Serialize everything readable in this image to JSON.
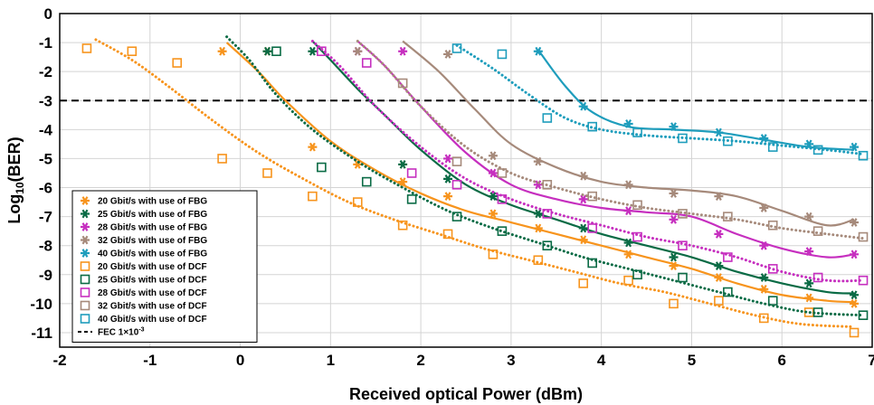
{
  "chart_data": {
    "type": "scatter",
    "title": "",
    "xlabel": "Received optical Power (dBm)",
    "ylabel_main": "Log",
    "ylabel_sub": "10",
    "ylabel_tail": "(BER)",
    "xlim": [
      -2,
      7
    ],
    "ylim": [
      -11.5,
      0
    ],
    "xticks": [
      "-2",
      "-1",
      "0",
      "1",
      "2",
      "3",
      "4",
      "5",
      "6",
      "7"
    ],
    "yticks": [
      "0",
      "-1",
      "-2",
      "-3",
      "-4",
      "-5",
      "-6",
      "-7",
      "-8",
      "-9",
      "-10",
      "-11"
    ],
    "grid": true,
    "legend_position": "bottom-left",
    "fec": {
      "label_main": "FEC 1×10",
      "label_sup": "-3",
      "y": -3
    },
    "series": [
      {
        "name": "20 Gbit/s with use of FBG",
        "color": "#f7941d",
        "marker": "star",
        "line": "solid",
        "points": [
          [
            -0.2,
            -1.3
          ],
          [
            0.3,
            -1.3
          ],
          [
            0.8,
            -4.6
          ],
          [
            1.3,
            -5.2
          ],
          [
            1.8,
            -5.8
          ],
          [
            2.3,
            -6.3
          ],
          [
            2.8,
            -6.9
          ],
          [
            3.3,
            -7.4
          ],
          [
            3.8,
            -7.8
          ],
          [
            4.3,
            -8.3
          ],
          [
            4.8,
            -8.7
          ],
          [
            5.3,
            -9.1
          ],
          [
            5.8,
            -9.5
          ],
          [
            6.3,
            -9.8
          ],
          [
            6.8,
            -10.0
          ]
        ],
        "fit": [
          [
            -0.15,
            -1.0
          ],
          [
            0.2,
            -2.0
          ],
          [
            0.5,
            -3.0
          ],
          [
            1.0,
            -4.4
          ],
          [
            1.5,
            -5.4
          ],
          [
            2.0,
            -6.2
          ],
          [
            2.5,
            -6.8
          ],
          [
            3.0,
            -7.2
          ],
          [
            3.5,
            -7.6
          ],
          [
            4.0,
            -8.0
          ],
          [
            4.5,
            -8.4
          ],
          [
            5.0,
            -8.8
          ],
          [
            5.5,
            -9.3
          ],
          [
            6.0,
            -9.7
          ],
          [
            6.5,
            -9.9
          ],
          [
            6.8,
            -9.95
          ]
        ]
      },
      {
        "name": "25 Gbit/s with use of FBG",
        "color": "#0a6b45",
        "marker": "star",
        "line": "solid",
        "points": [
          [
            0.3,
            -1.3
          ],
          [
            0.8,
            -1.3
          ],
          [
            1.8,
            -5.2
          ],
          [
            2.3,
            -5.7
          ],
          [
            2.8,
            -6.3
          ],
          [
            3.3,
            -6.9
          ],
          [
            3.8,
            -7.4
          ],
          [
            4.3,
            -7.9
          ],
          [
            4.8,
            -8.4
          ],
          [
            5.3,
            -8.7
          ],
          [
            5.8,
            -9.1
          ],
          [
            6.3,
            -9.3
          ],
          [
            6.8,
            -9.7
          ]
        ],
        "fit": [
          [
            0.8,
            -0.95
          ],
          [
            1.0,
            -1.6
          ],
          [
            1.3,
            -2.6
          ],
          [
            1.6,
            -3.5
          ],
          [
            2.0,
            -4.7
          ],
          [
            2.5,
            -5.9
          ],
          [
            3.0,
            -6.6
          ],
          [
            3.5,
            -7.1
          ],
          [
            4.0,
            -7.6
          ],
          [
            4.5,
            -8.0
          ],
          [
            5.0,
            -8.4
          ],
          [
            5.5,
            -8.9
          ],
          [
            6.0,
            -9.3
          ],
          [
            6.5,
            -9.6
          ],
          [
            6.8,
            -9.65
          ]
        ]
      },
      {
        "name": "28 Gbit/s with use of FBG",
        "color": "#c62fbf",
        "marker": "star",
        "line": "solid",
        "points": [
          [
            1.3,
            -1.3
          ],
          [
            1.8,
            -1.3
          ],
          [
            2.3,
            -5.0
          ],
          [
            2.8,
            -5.5
          ],
          [
            3.3,
            -5.9
          ],
          [
            3.8,
            -6.4
          ],
          [
            4.3,
            -6.8
          ],
          [
            4.8,
            -7.1
          ],
          [
            5.3,
            -7.6
          ],
          [
            5.8,
            -8.0
          ],
          [
            6.3,
            -8.2
          ],
          [
            6.8,
            -8.3
          ]
        ],
        "fit": [
          [
            1.3,
            -0.95
          ],
          [
            1.6,
            -1.8
          ],
          [
            2.0,
            -3.2
          ],
          [
            2.5,
            -4.8
          ],
          [
            3.0,
            -5.9
          ],
          [
            3.5,
            -6.4
          ],
          [
            4.0,
            -6.7
          ],
          [
            4.5,
            -6.85
          ],
          [
            5.0,
            -7.0
          ],
          [
            5.5,
            -7.6
          ],
          [
            6.0,
            -8.1
          ],
          [
            6.5,
            -8.4
          ],
          [
            6.8,
            -8.3
          ]
        ]
      },
      {
        "name": "32 Gbit/s with use of FBG",
        "color": "#a68a7b",
        "marker": "star",
        "line": "solid",
        "points": [
          [
            1.3,
            -1.3
          ],
          [
            2.3,
            -1.4
          ],
          [
            2.8,
            -4.9
          ],
          [
            3.3,
            -5.1
          ],
          [
            3.8,
            -5.6
          ],
          [
            4.3,
            -5.9
          ],
          [
            4.8,
            -6.2
          ],
          [
            5.3,
            -6.3
          ],
          [
            5.8,
            -6.7
          ],
          [
            6.3,
            -7.0
          ],
          [
            6.8,
            -7.2
          ]
        ],
        "fit": [
          [
            1.8,
            -0.95
          ],
          [
            2.2,
            -2.0
          ],
          [
            2.6,
            -3.3
          ],
          [
            3.0,
            -4.5
          ],
          [
            3.5,
            -5.3
          ],
          [
            4.0,
            -5.8
          ],
          [
            4.5,
            -6.0
          ],
          [
            5.0,
            -6.1
          ],
          [
            5.5,
            -6.3
          ],
          [
            6.0,
            -6.8
          ],
          [
            6.5,
            -7.3
          ],
          [
            6.8,
            -7.1
          ]
        ]
      },
      {
        "name": "40 Gbit/s with use of FBG",
        "color": "#1e9dbc",
        "marker": "star",
        "line": "solid",
        "points": [
          [
            3.3,
            -1.3
          ],
          [
            3.8,
            -3.2
          ],
          [
            4.3,
            -3.8
          ],
          [
            4.8,
            -3.9
          ],
          [
            5.3,
            -4.1
          ],
          [
            5.8,
            -4.3
          ],
          [
            6.3,
            -4.5
          ],
          [
            6.8,
            -4.6
          ]
        ],
        "fit": [
          [
            3.3,
            -1.25
          ],
          [
            3.6,
            -2.5
          ],
          [
            3.9,
            -3.4
          ],
          [
            4.3,
            -3.9
          ],
          [
            4.8,
            -4.0
          ],
          [
            5.3,
            -4.1
          ],
          [
            5.8,
            -4.35
          ],
          [
            6.3,
            -4.6
          ],
          [
            6.8,
            -4.7
          ]
        ]
      },
      {
        "name": "20 Gbit/s with use of DCF",
        "color": "#f7941d",
        "marker": "square",
        "line": "dotted",
        "points": [
          [
            -1.7,
            -1.2
          ],
          [
            -1.2,
            -1.3
          ],
          [
            -0.7,
            -1.7
          ],
          [
            -0.2,
            -5.0
          ],
          [
            0.3,
            -5.5
          ],
          [
            0.8,
            -6.3
          ],
          [
            1.3,
            -6.5
          ],
          [
            1.8,
            -7.3
          ],
          [
            2.3,
            -7.6
          ],
          [
            2.8,
            -8.3
          ],
          [
            3.3,
            -8.5
          ],
          [
            3.8,
            -9.3
          ],
          [
            4.3,
            -9.2
          ],
          [
            4.8,
            -10.0
          ],
          [
            5.3,
            -9.9
          ],
          [
            5.8,
            -10.5
          ],
          [
            6.3,
            -10.3
          ],
          [
            6.8,
            -11.0
          ]
        ],
        "fit": [
          [
            -1.6,
            -0.9
          ],
          [
            -1.2,
            -1.6
          ],
          [
            -0.8,
            -2.5
          ],
          [
            -0.3,
            -3.7
          ],
          [
            0.2,
            -4.8
          ],
          [
            0.7,
            -5.7
          ],
          [
            1.2,
            -6.5
          ],
          [
            1.7,
            -7.1
          ],
          [
            2.2,
            -7.6
          ],
          [
            2.7,
            -8.1
          ],
          [
            3.2,
            -8.5
          ],
          [
            3.7,
            -8.9
          ],
          [
            4.2,
            -9.3
          ],
          [
            4.7,
            -9.6
          ],
          [
            5.2,
            -10.0
          ],
          [
            5.7,
            -10.4
          ],
          [
            6.2,
            -10.7
          ],
          [
            6.8,
            -10.8
          ]
        ]
      },
      {
        "name": "25 Gbit/s with use of DCF",
        "color": "#0a6b45",
        "marker": "square",
        "line": "dotted",
        "points": [
          [
            0.4,
            -1.3
          ],
          [
            0.9,
            -5.3
          ],
          [
            1.4,
            -5.8
          ],
          [
            1.9,
            -6.4
          ],
          [
            2.4,
            -7.0
          ],
          [
            2.9,
            -7.5
          ],
          [
            3.4,
            -8.0
          ],
          [
            3.9,
            -8.6
          ],
          [
            4.4,
            -9.0
          ],
          [
            4.9,
            -9.1
          ],
          [
            5.4,
            -9.6
          ],
          [
            5.9,
            -9.9
          ],
          [
            6.4,
            -10.3
          ],
          [
            6.9,
            -10.4
          ]
        ],
        "fit": [
          [
            -0.15,
            -0.8
          ],
          [
            0.1,
            -1.6
          ],
          [
            0.4,
            -2.8
          ],
          [
            0.8,
            -4.0
          ],
          [
            1.3,
            -5.1
          ],
          [
            1.8,
            -6.0
          ],
          [
            2.3,
            -6.8
          ],
          [
            2.8,
            -7.4
          ],
          [
            3.3,
            -7.9
          ],
          [
            3.8,
            -8.4
          ],
          [
            4.3,
            -8.8
          ],
          [
            4.8,
            -9.2
          ],
          [
            5.3,
            -9.6
          ],
          [
            5.8,
            -10.0
          ],
          [
            6.3,
            -10.3
          ],
          [
            6.9,
            -10.4
          ]
        ]
      },
      {
        "name": "28 Gbit/s with use of DCF",
        "color": "#c62fbf",
        "marker": "square",
        "line": "dotted",
        "points": [
          [
            0.9,
            -1.3
          ],
          [
            1.4,
            -1.7
          ],
          [
            1.9,
            -5.5
          ],
          [
            2.4,
            -5.9
          ],
          [
            2.9,
            -6.4
          ],
          [
            3.4,
            -6.9
          ],
          [
            3.9,
            -7.4
          ],
          [
            4.4,
            -7.7
          ],
          [
            4.9,
            -8.0
          ],
          [
            5.4,
            -8.4
          ],
          [
            5.9,
            -8.8
          ],
          [
            6.4,
            -9.1
          ],
          [
            6.9,
            -9.2
          ]
        ],
        "fit": [
          [
            0.8,
            -0.95
          ],
          [
            1.1,
            -1.8
          ],
          [
            1.5,
            -3.2
          ],
          [
            2.0,
            -4.6
          ],
          [
            2.5,
            -5.7
          ],
          [
            3.0,
            -6.4
          ],
          [
            3.5,
            -6.9
          ],
          [
            4.0,
            -7.3
          ],
          [
            4.5,
            -7.7
          ],
          [
            5.0,
            -8.0
          ],
          [
            5.5,
            -8.4
          ],
          [
            6.0,
            -8.9
          ],
          [
            6.5,
            -9.2
          ],
          [
            6.9,
            -9.2
          ]
        ]
      },
      {
        "name": "32 Gbit/s with use of DCF",
        "color": "#a68a7b",
        "marker": "square",
        "line": "dotted",
        "points": [
          [
            1.8,
            -2.4
          ],
          [
            2.4,
            -5.1
          ],
          [
            2.9,
            -5.5
          ],
          [
            3.4,
            -5.9
          ],
          [
            3.9,
            -6.3
          ],
          [
            4.4,
            -6.6
          ],
          [
            4.9,
            -6.9
          ],
          [
            5.4,
            -7.0
          ],
          [
            5.9,
            -7.3
          ],
          [
            6.4,
            -7.5
          ],
          [
            6.9,
            -7.7
          ]
        ],
        "fit": [
          [
            1.3,
            -0.95
          ],
          [
            1.6,
            -1.8
          ],
          [
            2.0,
            -3.2
          ],
          [
            2.5,
            -4.6
          ],
          [
            3.0,
            -5.5
          ],
          [
            3.5,
            -6.0
          ],
          [
            4.0,
            -6.4
          ],
          [
            4.5,
            -6.7
          ],
          [
            5.0,
            -6.9
          ],
          [
            5.5,
            -7.1
          ],
          [
            6.0,
            -7.4
          ],
          [
            6.5,
            -7.6
          ],
          [
            6.9,
            -7.75
          ]
        ]
      },
      {
        "name": "40 Gbit/s with use of DCF",
        "color": "#1e9dbc",
        "marker": "square",
        "line": "dotted",
        "points": [
          [
            2.4,
            -1.2
          ],
          [
            2.9,
            -1.4
          ],
          [
            3.4,
            -3.6
          ],
          [
            3.9,
            -3.9
          ],
          [
            4.4,
            -4.1
          ],
          [
            4.9,
            -4.3
          ],
          [
            5.4,
            -4.4
          ],
          [
            5.9,
            -4.6
          ],
          [
            6.4,
            -4.7
          ],
          [
            6.9,
            -4.9
          ]
        ],
        "fit": [
          [
            2.4,
            -1.1
          ],
          [
            2.8,
            -1.9
          ],
          [
            3.2,
            -2.8
          ],
          [
            3.6,
            -3.6
          ],
          [
            4.0,
            -4.0
          ],
          [
            4.5,
            -4.2
          ],
          [
            5.0,
            -4.3
          ],
          [
            5.5,
            -4.4
          ],
          [
            6.0,
            -4.55
          ],
          [
            6.5,
            -4.7
          ],
          [
            6.9,
            -4.85
          ]
        ]
      }
    ]
  }
}
